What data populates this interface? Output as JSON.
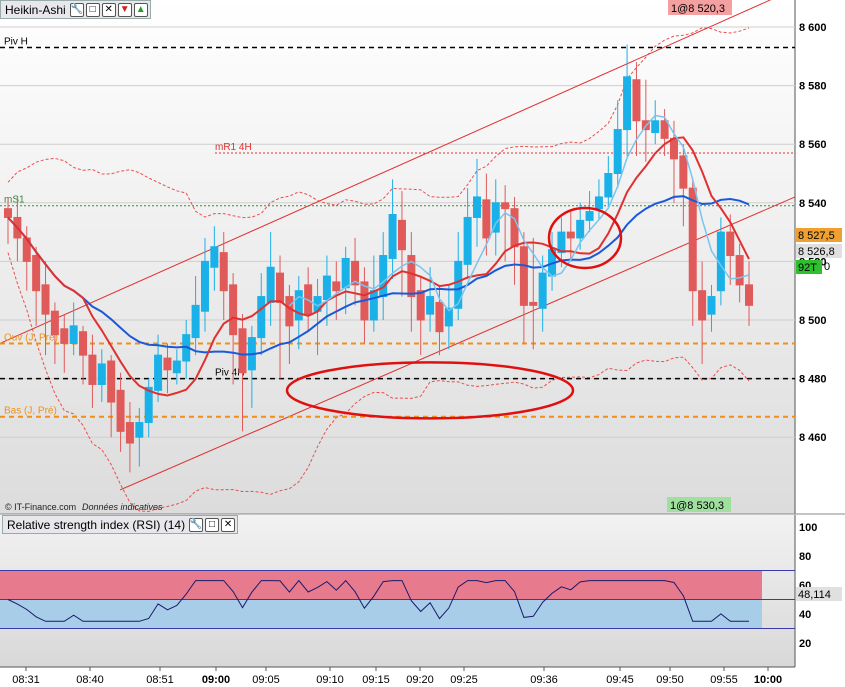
{
  "panel": {
    "title": "Heikin-Ashi"
  },
  "rsi_panel": {
    "title": "Relative strength index (RSI) (14)"
  },
  "icons": [
    "wrench-icon",
    "window-icon",
    "close-icon",
    "down-arrow-icon",
    "up-arrow-icon"
  ],
  "copyright": "© IT-Finance.com",
  "disclaimer": "Données indicatives",
  "order_top": "1@8 520,3",
  "order_bottom": "1@8 530,3",
  "price_tags": {
    "last": "8 527,5",
    "current": "8 526,8",
    "volume_tag": "92T",
    "zero": "0"
  },
  "rsi_value": "48,114",
  "levels": [
    {
      "name": "Piv H",
      "value": 8593,
      "color": "#000000",
      "style": "dashed"
    },
    {
      "name": "mR1 4H",
      "value": 8557,
      "color": "#e03030",
      "style": "dotted"
    },
    {
      "name": "mS1",
      "value": 8539,
      "color": "#3a8a3a",
      "style": "dotted"
    },
    {
      "name": "Ouv (J, Pré)",
      "value": 8492,
      "color": "#f0901a",
      "style": "dashed"
    },
    {
      "name": "Piv 4H",
      "value": 8480,
      "color": "#000000",
      "style": "dashed"
    },
    {
      "name": "Bas (J, Pré)",
      "value": 8467,
      "color": "#f0901a",
      "style": "dashed"
    }
  ],
  "colors": {
    "bull": "#1ab0e8",
    "bear": "#e05a5a",
    "ma_fast": "#e03030",
    "ma_slow": "#1a5ad8",
    "ma_light": "#7ac4ee",
    "band": "#e85050",
    "annotation": "#e01010"
  },
  "chart_data": {
    "type": "candlestick",
    "title": "Heikin-Ashi",
    "y_axis": {
      "ylim": [
        8440,
        8605
      ],
      "ticks": [
        8460,
        8480,
        8500,
        8520,
        8540,
        8560,
        8580,
        8600
      ]
    },
    "x_axis": {
      "ticks": [
        "08:31",
        "08:40",
        "08:51",
        "09:00",
        "09:05",
        "09:10",
        "09:15",
        "09:20",
        "09:25",
        "09:36",
        "09:45",
        "09:50",
        "09:55",
        "10:00"
      ],
      "bold_ticks": [
        "09:00",
        "10:00"
      ]
    },
    "candles": [
      [
        8538,
        8535,
        8542,
        8526
      ],
      [
        8535,
        8528,
        8542,
        8520
      ],
      [
        8528,
        8520,
        8532,
        8510
      ],
      [
        8522,
        8510,
        8525,
        8498
      ],
      [
        8512,
        8502,
        8520,
        8488
      ],
      [
        8503,
        8495,
        8506,
        8485
      ],
      [
        8497,
        8492,
        8502,
        8482
      ],
      [
        8492,
        8498,
        8506,
        8488
      ],
      [
        8496,
        8488,
        8498,
        8478
      ],
      [
        8488,
        8478,
        8495,
        8470
      ],
      [
        8478,
        8485,
        8490,
        8472
      ],
      [
        8486,
        8472,
        8488,
        8460
      ],
      [
        8476,
        8462,
        8482,
        8455
      ],
      [
        8465,
        8458,
        8472,
        8448
      ],
      [
        8460,
        8465,
        8470,
        8450
      ],
      [
        8465,
        8477,
        8480,
        8460
      ],
      [
        8476,
        8488,
        8495,
        8472
      ],
      [
        8487,
        8483,
        8492,
        8475
      ],
      [
        8482,
        8486,
        8490,
        8478
      ],
      [
        8486,
        8495,
        8500,
        8480
      ],
      [
        8494,
        8505,
        8515,
        8488
      ],
      [
        8503,
        8520,
        8528,
        8496
      ],
      [
        8518,
        8525,
        8532,
        8510
      ],
      [
        8523,
        8510,
        8530,
        8500
      ],
      [
        8512,
        8495,
        8516,
        8478
      ],
      [
        8497,
        8482,
        8502,
        8462
      ],
      [
        8483,
        8494,
        8498,
        8470
      ],
      [
        8494,
        8508,
        8516,
        8488
      ],
      [
        8506,
        8518,
        8530,
        8498
      ],
      [
        8516,
        8506,
        8522,
        8480
      ],
      [
        8508,
        8498,
        8512,
        8485
      ],
      [
        8500,
        8510,
        8515,
        8490
      ],
      [
        8512,
        8502,
        8518,
        8496
      ],
      [
        8503,
        8508,
        8514,
        8488
      ],
      [
        8507,
        8515,
        8522,
        8498
      ],
      [
        8513,
        8510,
        8520,
        8500
      ],
      [
        8511,
        8521,
        8525,
        8502
      ],
      [
        8520,
        8512,
        8528,
        8505
      ],
      [
        8513,
        8500,
        8518,
        8492
      ],
      [
        8500,
        8510,
        8522,
        8496
      ],
      [
        8508,
        8522,
        8530,
        8500
      ],
      [
        8521,
        8536,
        8548,
        8514
      ],
      [
        8534,
        8524,
        8544,
        8508
      ],
      [
        8522,
        8508,
        8530,
        8496
      ],
      [
        8510,
        8500,
        8515,
        8488
      ],
      [
        8502,
        8508,
        8518,
        8496
      ],
      [
        8506,
        8496,
        8512,
        8488
      ],
      [
        8498,
        8504,
        8512,
        8490
      ],
      [
        8504,
        8520,
        8530,
        8500
      ],
      [
        8519,
        8535,
        8545,
        8514
      ],
      [
        8535,
        8542,
        8555,
        8525
      ],
      [
        8541,
        8528,
        8550,
        8522
      ],
      [
        8530,
        8540,
        8548,
        8522
      ],
      [
        8540,
        8538,
        8546,
        8520
      ],
      [
        8538,
        8525,
        8542,
        8512
      ],
      [
        8525,
        8505,
        8530,
        8492
      ],
      [
        8506,
        8505,
        8528,
        8490
      ],
      [
        8504,
        8516,
        8522,
        8496
      ],
      [
        8515,
        8524,
        8530,
        8510
      ],
      [
        8523,
        8530,
        8535,
        8518
      ],
      [
        8530,
        8528,
        8537,
        8520
      ],
      [
        8528,
        8534,
        8540,
        8524
      ],
      [
        8534,
        8537,
        8544,
        8530
      ],
      [
        8538,
        8542,
        8548,
        8534
      ],
      [
        8542,
        8550,
        8556,
        8538
      ],
      [
        8550,
        8565,
        8575,
        8545
      ],
      [
        8565,
        8583,
        8594,
        8556
      ],
      [
        8582,
        8568,
        8588,
        8556
      ],
      [
        8568,
        8565,
        8582,
        8554
      ],
      [
        8564,
        8568,
        8575,
        8560
      ],
      [
        8568,
        8562,
        8572,
        8556
      ],
      [
        8562,
        8555,
        8568,
        8540
      ],
      [
        8556,
        8545,
        8560,
        8532
      ],
      [
        8545,
        8510,
        8548,
        8498
      ],
      [
        8510,
        8500,
        8520,
        8485
      ],
      [
        8502,
        8508,
        8512,
        8496
      ],
      [
        8510,
        8530,
        8535,
        8505
      ],
      [
        8530,
        8522,
        8536,
        8512
      ],
      [
        8522,
        8512,
        8526,
        8506
      ],
      [
        8512,
        8505,
        8520,
        8498
      ]
    ],
    "rsi": {
      "name": "Relative strength index (RSI) (14)",
      "ylim": [
        0,
        100
      ],
      "ticks": [
        20,
        40,
        60,
        80,
        100
      ],
      "last": 48.114
    },
    "annotations": [
      "circle",
      "ellipse"
    ]
  }
}
